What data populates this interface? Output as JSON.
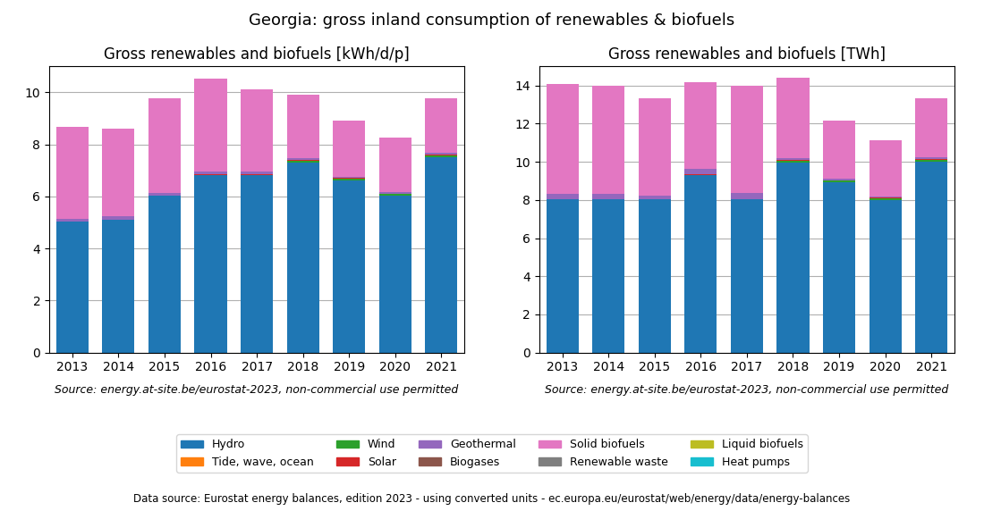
{
  "title": "Georgia: gross inland consumption of renewables & biofuels",
  "annotations": [
    "Data source: Eurostat energy balances, edition 2023 - using converted units - ec.europa.eu/eurostat/web/energy/data/energy-balances"
  ],
  "legend": "lower center",
  "chart_data": [
    {
      "type": "bar",
      "title": "Gross renewables and biofuels [kWh/d/p]",
      "stacked": true,
      "grid": true,
      "categories": [
        "2013",
        "2014",
        "2015",
        "2016",
        "2017",
        "2018",
        "2019",
        "2020",
        "2021"
      ],
      "ylim": [
        0,
        11
      ],
      "yticks": [
        0,
        2,
        4,
        6,
        8,
        10
      ],
      "annotations": [
        "Source: energy.at-site.be/eurostat-2023, non-commercial use permitted"
      ],
      "series": [
        {
          "name": "Hydro",
          "values": [
            5.02,
            5.12,
            6.02,
            6.82,
            6.82,
            7.32,
            6.62,
            6.02,
            7.52
          ]
        },
        {
          "name": "Tide, wave, ocean",
          "values": [
            0.0,
            0.0,
            0.0,
            0.0,
            0.0,
            0.0,
            0.0,
            0.0,
            0.0
          ]
        },
        {
          "name": "Wind",
          "values": [
            0.0,
            0.0,
            0.0,
            0.0,
            0.0,
            0.05,
            0.06,
            0.07,
            0.07
          ]
        },
        {
          "name": "Solar",
          "values": [
            0.0,
            0.0,
            0.0,
            0.02,
            0.02,
            0.03,
            0.03,
            0.02,
            0.03
          ]
        },
        {
          "name": "Geothermal",
          "values": [
            0.12,
            0.12,
            0.12,
            0.12,
            0.12,
            0.06,
            0.05,
            0.05,
            0.05
          ]
        },
        {
          "name": "Biogases",
          "values": [
            0.0,
            0.0,
            0.0,
            0.0,
            0.0,
            0.0,
            0.0,
            0.0,
            0.0
          ]
        },
        {
          "name": "Solid biofuels",
          "values": [
            3.55,
            3.37,
            3.64,
            3.58,
            3.15,
            2.45,
            2.16,
            2.12,
            2.12
          ]
        },
        {
          "name": "Renewable waste",
          "values": [
            0.0,
            0.0,
            0.0,
            0.0,
            0.0,
            0.0,
            0.0,
            0.0,
            0.0
          ]
        },
        {
          "name": "Liquid biofuels",
          "values": [
            0.0,
            0.0,
            0.0,
            0.0,
            0.0,
            0.0,
            0.0,
            0.0,
            0.0
          ]
        },
        {
          "name": "Heat pumps",
          "values": [
            0.0,
            0.0,
            0.0,
            0.0,
            0.0,
            0.0,
            0.0,
            0.0,
            0.0
          ]
        }
      ]
    },
    {
      "type": "bar",
      "title": "Gross renewables and biofuels [TWh]",
      "stacked": true,
      "grid": true,
      "categories": [
        "2013",
        "2014",
        "2015",
        "2016",
        "2017",
        "2018",
        "2019",
        "2020",
        "2021"
      ],
      "ylim": [
        0,
        15
      ],
      "yticks": [
        0,
        2,
        4,
        6,
        8,
        10,
        12,
        14
      ],
      "annotations": [
        "Source: energy.at-site.be/eurostat-2023, non-commercial use permitted"
      ],
      "series": [
        {
          "name": "Hydro",
          "values": [
            8.02,
            8.02,
            8.02,
            9.32,
            8.02,
            9.98,
            8.92,
            7.98,
            10.02
          ]
        },
        {
          "name": "Tide, wave, ocean",
          "values": [
            0.0,
            0.0,
            0.0,
            0.0,
            0.0,
            0.0,
            0.0,
            0.0,
            0.0
          ]
        },
        {
          "name": "Wind",
          "values": [
            0.0,
            0.0,
            0.0,
            0.0,
            0.0,
            0.07,
            0.08,
            0.1,
            0.1
          ]
        },
        {
          "name": "Solar",
          "values": [
            0.0,
            0.0,
            0.0,
            0.03,
            0.02,
            0.04,
            0.04,
            0.03,
            0.04
          ]
        },
        {
          "name": "Geothermal",
          "values": [
            0.28,
            0.28,
            0.22,
            0.28,
            0.32,
            0.1,
            0.08,
            0.07,
            0.08
          ]
        },
        {
          "name": "Biogases",
          "values": [
            0.0,
            0.0,
            0.0,
            0.0,
            0.0,
            0.0,
            0.0,
            0.0,
            0.0
          ]
        },
        {
          "name": "Solid biofuels",
          "values": [
            5.79,
            5.71,
            5.08,
            4.54,
            5.62,
            4.24,
            3.02,
            2.96,
            3.09
          ]
        },
        {
          "name": "Renewable waste",
          "values": [
            0.0,
            0.0,
            0.0,
            0.0,
            0.0,
            0.0,
            0.0,
            0.0,
            0.0
          ]
        },
        {
          "name": "Liquid biofuels",
          "values": [
            0.0,
            0.0,
            0.0,
            0.0,
            0.0,
            0.0,
            0.0,
            0.0,
            0.0
          ]
        },
        {
          "name": "Heat pumps",
          "values": [
            0.0,
            0.0,
            0.0,
            0.0,
            0.0,
            0.0,
            0.0,
            0.0,
            0.0
          ]
        }
      ]
    }
  ]
}
